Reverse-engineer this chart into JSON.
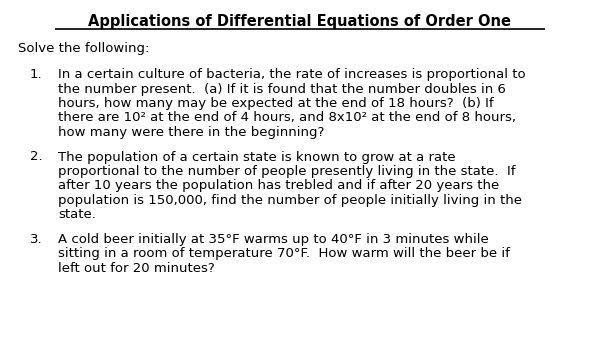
{
  "title": "Applications of Differential Equations of Order One",
  "intro": "Solve the following:",
  "background_color": "#ffffff",
  "text_color": "#000000",
  "items": [
    {
      "number": "1.",
      "lines": [
        "In a certain culture of bacteria, the rate of increases is proportional to",
        "the number present.  (a) If it is found that the number doubles in 6",
        "hours, how many may be expected at the end of 18 hours?  (b) If",
        "there are 10² at the end of 4 hours, and 8x10² at the end of 8 hours,",
        "how many were there in the beginning?"
      ]
    },
    {
      "number": "2.",
      "lines": [
        "The population of a certain state is known to grow at a rate",
        "proportional to the number of people presently living in the state.  If",
        "after 10 years the population has trebled and if after 20 years the",
        "population is 150,000, find the number of people initially living in the",
        "state."
      ]
    },
    {
      "number": "3.",
      "lines": [
        "A cold beer initially at 35°F warms up to 40°F in 3 minutes while",
        "sitting in a room of temperature 70°F.  How warm will the beer be if",
        "left out for 20 minutes?"
      ]
    }
  ],
  "title_fontsize": 10.5,
  "body_fontsize": 9.5,
  "font_family": "DejaVu Sans",
  "figwidth": 6.0,
  "figheight": 3.55,
  "dpi": 100
}
